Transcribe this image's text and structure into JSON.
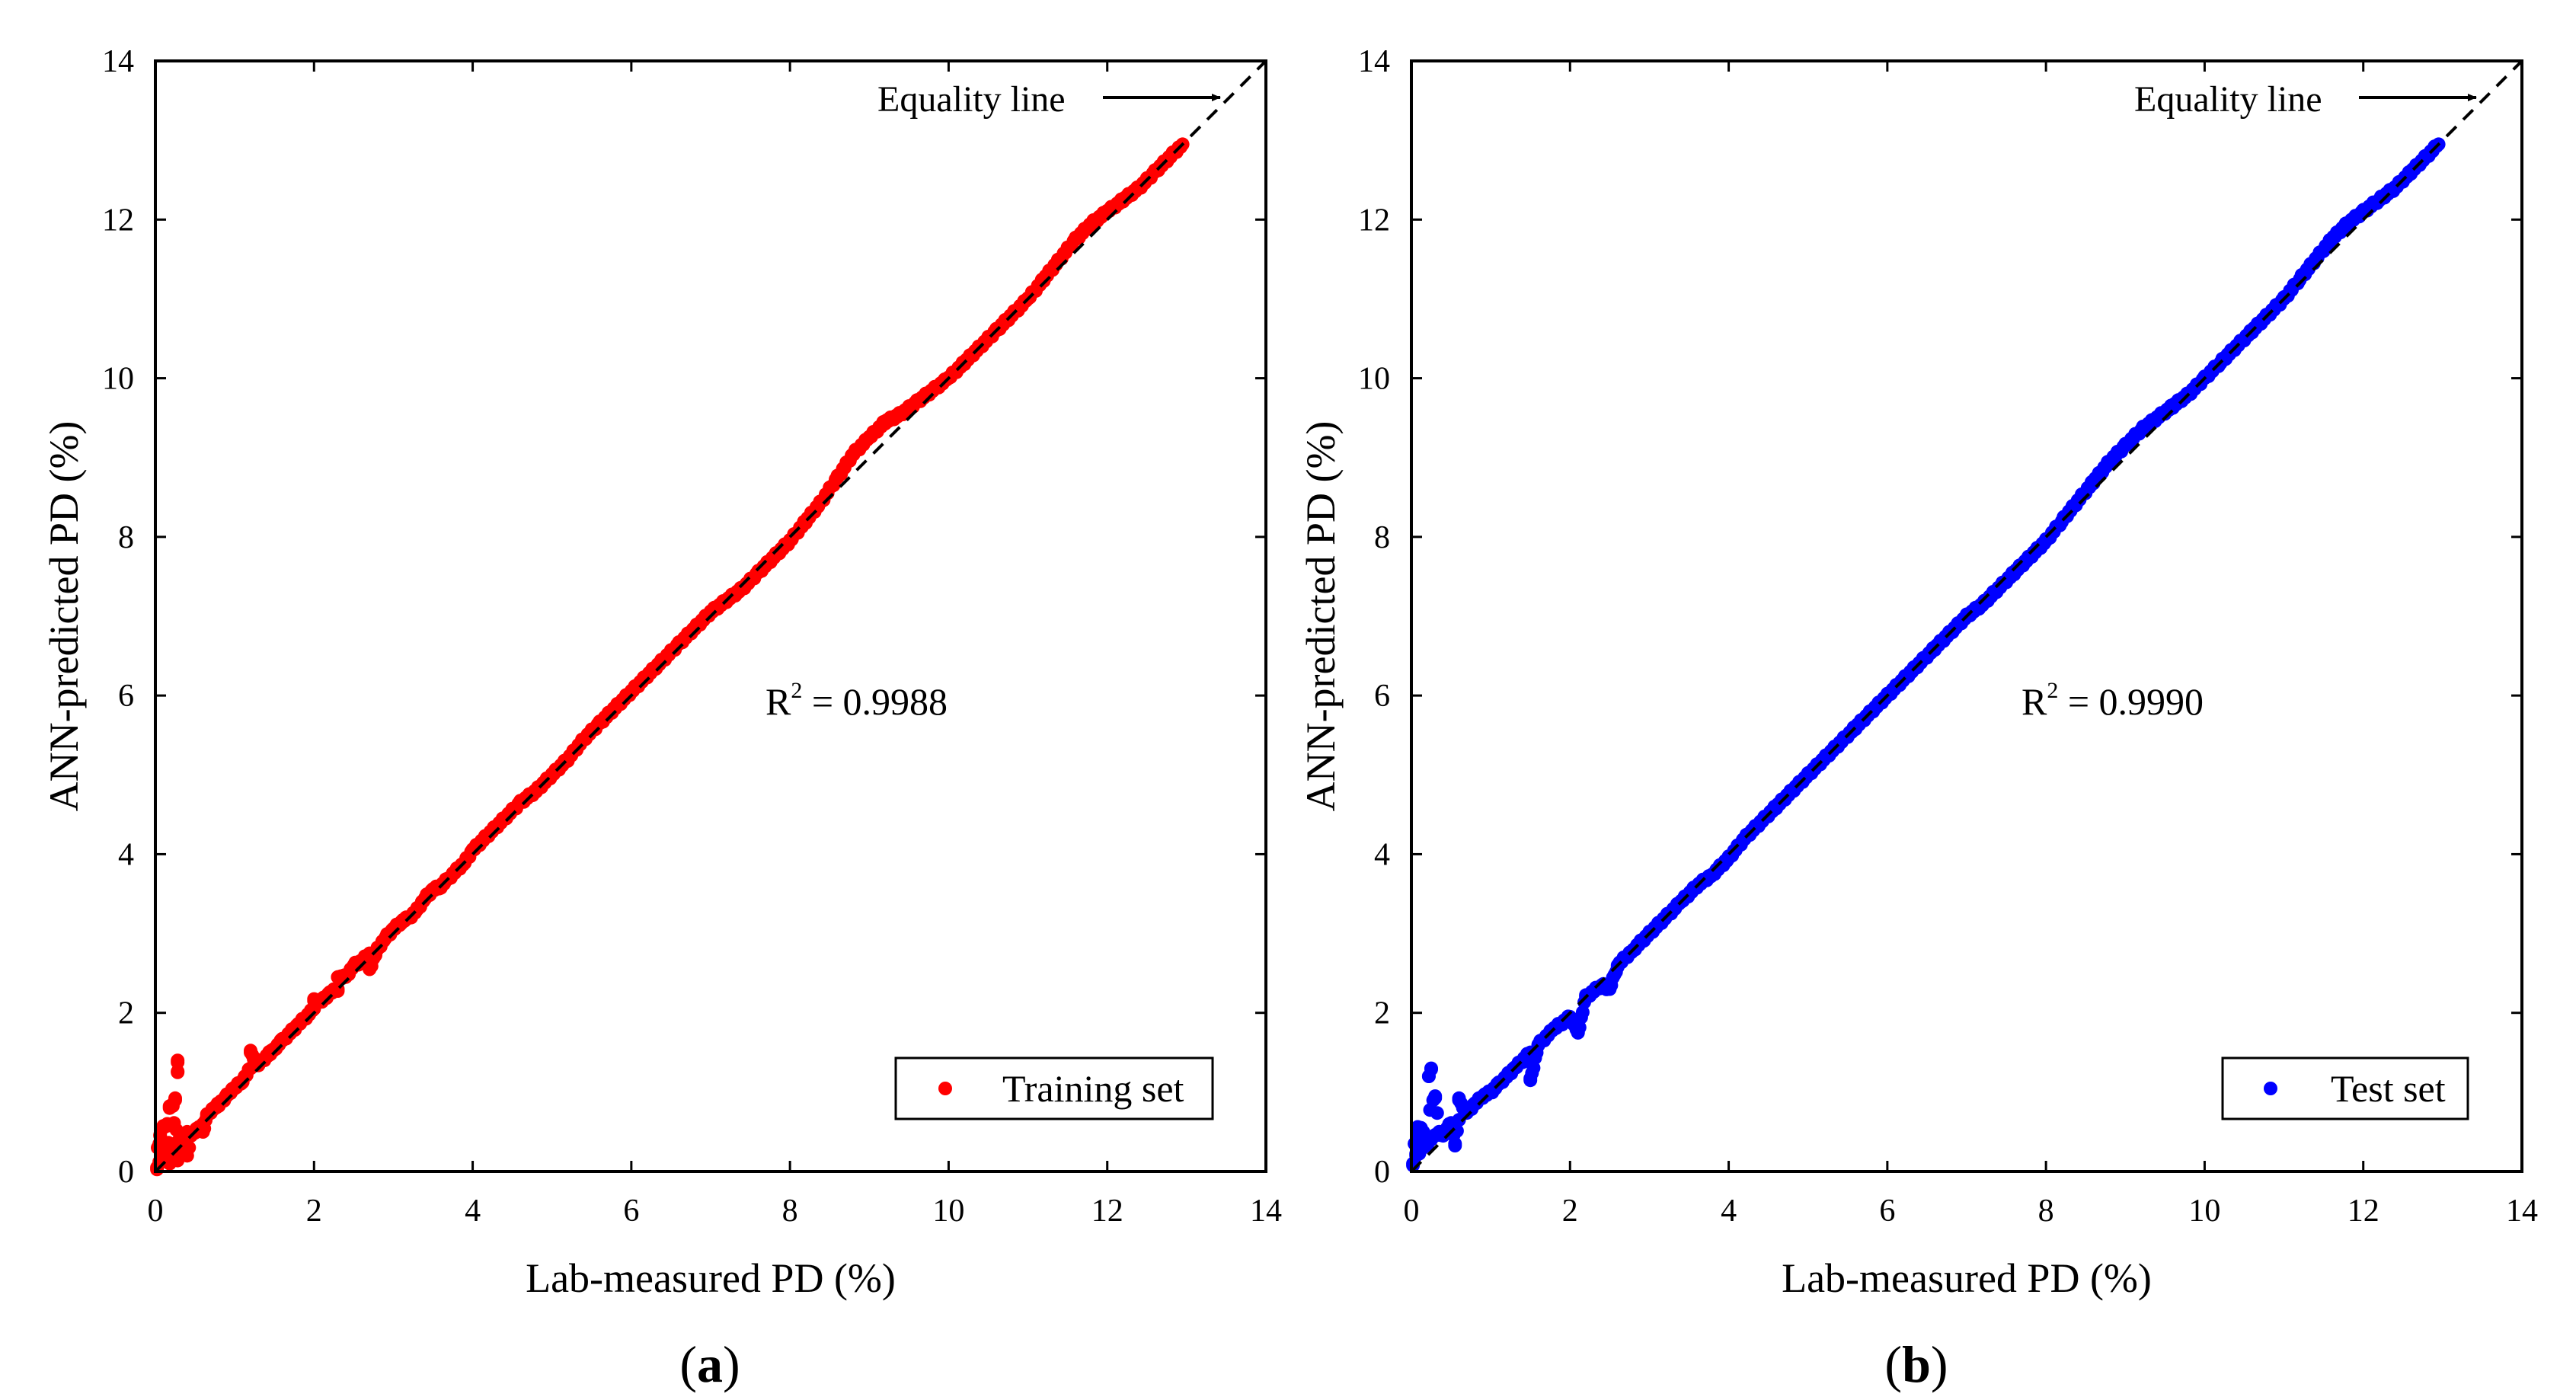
{
  "chart_data": [
    {
      "type": "scatter",
      "panel_label": "a",
      "xlabel": "Lab-measured PD (%)",
      "ylabel": "ANN-predicted PD (%)",
      "xlim": [
        0,
        14
      ],
      "ylim": [
        0,
        14
      ],
      "xticks": [
        "0",
        "2",
        "4",
        "6",
        "8",
        "10",
        "12",
        "14"
      ],
      "yticks": [
        "0",
        "2",
        "4",
        "6",
        "8",
        "10",
        "12",
        "14"
      ],
      "grid": false,
      "legend_position": "bottom-right",
      "equality_line": {
        "label": "Equality line",
        "x": [
          0,
          14
        ],
        "y": [
          0,
          14
        ]
      },
      "r2_text": {
        "prefix": "R",
        "sup": "2",
        "value": " = 0.9988"
      },
      "series": [
        {
          "name": "Training set",
          "color": "#ff0000",
          "x": [
            0.02,
            0.03,
            0.05,
            0.06,
            0.08,
            0.1,
            0.12,
            0.15,
            0.18,
            0.2,
            0.22,
            0.25,
            0.28,
            0.3,
            0.32,
            0.35,
            0.38,
            0.4,
            0.45,
            0.5,
            0.55,
            0.6,
            0.65,
            0.7,
            0.75,
            0.8,
            0.85,
            0.9,
            0.95,
            1.0,
            1.1,
            1.2,
            1.3,
            1.4,
            1.5,
            1.6,
            1.7,
            1.8,
            1.9,
            2.0,
            2.1,
            2.2,
            2.3,
            2.4,
            2.5,
            2.6,
            2.7,
            2.8,
            2.9,
            3.0,
            3.1,
            3.2,
            3.3,
            3.4,
            3.5,
            3.6,
            3.7,
            3.8,
            3.9,
            4.0,
            4.2,
            4.4,
            4.6,
            4.8,
            5.0,
            5.2,
            5.4,
            5.6,
            5.8,
            6.0,
            6.2,
            6.4,
            6.6,
            6.8,
            7.0,
            7.2,
            7.4,
            7.6,
            7.8,
            8.0,
            8.2,
            8.4,
            8.6,
            8.8,
            9.0,
            9.2,
            9.4,
            9.6,
            9.8,
            10.0,
            10.2,
            10.4,
            10.6,
            10.8,
            11.0,
            11.2,
            11.4,
            11.6,
            11.8,
            12.0,
            12.2,
            12.4,
            12.6,
            12.8,
            12.95,
            0.18,
            0.22,
            0.25,
            0.28,
            0.28,
            0.1,
            0.15,
            0.05,
            0.4,
            0.6,
            1.2,
            1.45,
            2.0,
            2.3,
            2.7
          ],
          "y": [
            0.05,
            0.3,
            0.1,
            0.45,
            0.2,
            0.15,
            0.35,
            0.25,
            0.1,
            0.3,
            0.2,
            0.35,
            0.15,
            0.4,
            0.3,
            0.45,
            0.35,
            0.5,
            0.45,
            0.5,
            0.55,
            0.6,
            0.7,
            0.75,
            0.8,
            0.85,
            0.9,
            0.95,
            1.0,
            1.05,
            1.15,
            1.3,
            1.35,
            1.45,
            1.55,
            1.65,
            1.75,
            1.85,
            1.95,
            2.05,
            2.15,
            2.25,
            2.3,
            2.45,
            2.6,
            2.65,
            2.75,
            2.8,
            2.95,
            3.05,
            3.15,
            3.2,
            3.3,
            3.45,
            3.55,
            3.6,
            3.7,
            3.8,
            3.9,
            4.05,
            4.25,
            4.45,
            4.65,
            4.8,
            5.0,
            5.2,
            5.45,
            5.65,
            5.85,
            6.05,
            6.25,
            6.45,
            6.65,
            6.85,
            7.05,
            7.2,
            7.35,
            7.55,
            7.75,
            7.95,
            8.2,
            8.45,
            8.75,
            9.05,
            9.25,
            9.45,
            9.55,
            9.7,
            9.85,
            10.0,
            10.2,
            10.4,
            10.6,
            10.8,
            11.0,
            11.25,
            11.5,
            11.75,
            11.95,
            12.1,
            12.25,
            12.4,
            12.6,
            12.8,
            12.95,
            0.8,
            0.85,
            0.9,
            1.25,
            1.4,
            0.55,
            0.6,
            0.35,
            0.2,
            0.5,
            1.5,
            1.5,
            2.15,
            2.45,
            2.55
          ]
        }
      ]
    },
    {
      "type": "scatter",
      "panel_label": "b",
      "xlabel": "Lab-measured PD (%)",
      "ylabel": "ANN-predicted PD (%)",
      "xlim": [
        0,
        14
      ],
      "ylim": [
        0,
        14
      ],
      "xticks": [
        "0",
        "2",
        "4",
        "6",
        "8",
        "10",
        "12",
        "14"
      ],
      "yticks": [
        "0",
        "2",
        "4",
        "6",
        "8",
        "10",
        "12",
        "14"
      ],
      "grid": false,
      "legend_position": "bottom-right",
      "equality_line": {
        "label": "Equality line",
        "x": [
          0,
          14
        ],
        "y": [
          0,
          14
        ]
      },
      "r2_text": {
        "prefix": "R",
        "sup": "2",
        "value": " = 0.9990"
      },
      "series": [
        {
          "name": "Test set",
          "color": "#0000ff",
          "x": [
            0.02,
            0.04,
            0.06,
            0.08,
            0.1,
            0.12,
            0.15,
            0.18,
            0.2,
            0.25,
            0.3,
            0.35,
            0.4,
            0.45,
            0.5,
            0.6,
            0.7,
            0.8,
            0.9,
            1.0,
            1.1,
            1.2,
            1.3,
            1.4,
            1.5,
            1.6,
            1.8,
            2.0,
            2.2,
            2.4,
            2.6,
            2.8,
            3.0,
            3.2,
            3.4,
            3.6,
            3.8,
            4.0,
            4.2,
            4.4,
            4.6,
            4.8,
            5.0,
            5.2,
            5.4,
            5.6,
            5.8,
            6.0,
            6.2,
            6.4,
            6.6,
            6.8,
            7.0,
            7.2,
            7.4,
            7.6,
            7.8,
            8.0,
            8.2,
            8.4,
            8.6,
            8.8,
            9.0,
            9.2,
            9.4,
            9.6,
            9.8,
            10.0,
            10.2,
            10.4,
            10.6,
            10.8,
            11.0,
            11.2,
            11.4,
            11.6,
            11.8,
            12.0,
            12.2,
            12.4,
            12.6,
            12.8,
            12.95,
            0.22,
            0.25,
            0.3,
            0.08,
            0.15,
            0.55,
            0.6,
            1.5,
            2.1,
            2.5
          ],
          "y": [
            0.1,
            0.35,
            0.2,
            0.45,
            0.25,
            0.55,
            0.3,
            0.4,
            0.35,
            0.4,
            0.45,
            0.5,
            0.45,
            0.55,
            0.6,
            0.65,
            0.75,
            0.85,
            0.95,
            1.0,
            1.1,
            1.2,
            1.3,
            1.4,
            1.5,
            1.6,
            1.8,
            1.95,
            2.2,
            2.35,
            2.6,
            2.8,
            3.0,
            3.2,
            3.4,
            3.6,
            3.75,
            3.95,
            4.2,
            4.4,
            4.6,
            4.8,
            5.0,
            5.2,
            5.4,
            5.6,
            5.8,
            6.0,
            6.2,
            6.4,
            6.6,
            6.8,
            7.0,
            7.15,
            7.35,
            7.55,
            7.75,
            7.95,
            8.2,
            8.45,
            8.7,
            8.95,
            9.15,
            9.35,
            9.5,
            9.65,
            9.8,
            10.0,
            10.2,
            10.4,
            10.6,
            10.8,
            11.0,
            11.25,
            11.5,
            11.75,
            11.95,
            12.1,
            12.25,
            12.4,
            12.6,
            12.8,
            12.95,
            1.2,
            1.3,
            0.95,
            0.55,
            0.5,
            0.35,
            0.9,
            1.15,
            1.75,
            2.3
          ]
        }
      ]
    }
  ]
}
